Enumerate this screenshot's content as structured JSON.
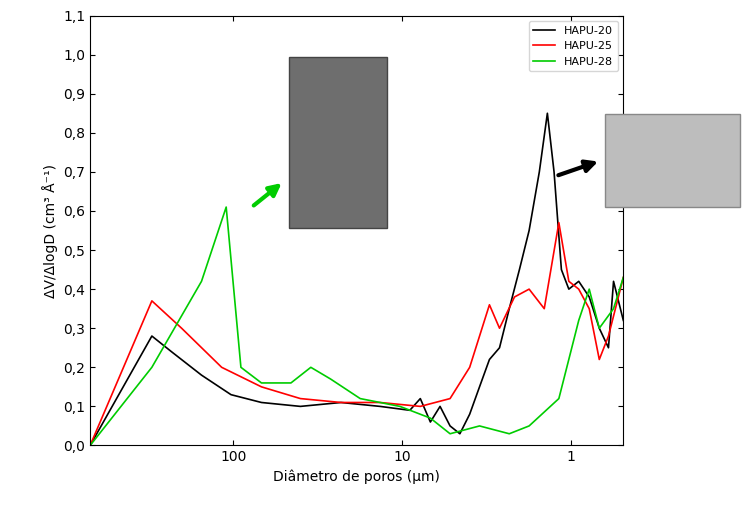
{
  "chart_data": {
    "type": "line",
    "x_label": "Diâmetro de poros (µm)",
    "y_label": "ΔV/ΔlogD (cm³ Å⁻¹)",
    "log": "x",
    "grid": false,
    "legend": "upper right",
    "xlim": [
      703,
      0.49
    ],
    "xticks": [
      100,
      10,
      1
    ],
    "ylim": [
      0.0,
      1.1
    ],
    "yticks": [
      {
        "value": 0.0,
        "label": "0,0"
      },
      {
        "value": 0.1,
        "label": "0,1"
      },
      {
        "value": 0.2,
        "label": "0,2"
      },
      {
        "value": 0.3,
        "label": "0,3"
      },
      {
        "value": 0.4,
        "label": "0,4"
      },
      {
        "value": 0.5,
        "label": "0,5"
      },
      {
        "value": 0.6,
        "label": "0,6"
      },
      {
        "value": 0.7,
        "label": "0,7"
      },
      {
        "value": 0.8,
        "label": "0,8"
      },
      {
        "value": 0.9,
        "label": "0,9"
      },
      {
        "value": 1.0,
        "label": "1,0"
      },
      {
        "value": 1.1,
        "label": "1,1"
      }
    ],
    "series": [
      {
        "name": "HAPU-20",
        "color": "#000000",
        "x": [
          703,
          303,
          232,
          154,
          103,
          68,
          40,
          23,
          13.5,
          9.0,
          7.8,
          6.8,
          5.96,
          5.2,
          4.55,
          3.98,
          3.48,
          3.04,
          2.65,
          2.32,
          2.02,
          1.77,
          1.54,
          1.38,
          1.26,
          1.14,
          1.03,
          0.9,
          0.78,
          0.68,
          0.6,
          0.56,
          0.49
        ],
        "values": [
          0.0,
          0.28,
          0.24,
          0.18,
          0.13,
          0.11,
          0.1,
          0.11,
          0.1,
          0.09,
          0.12,
          0.06,
          0.1,
          0.05,
          0.03,
          0.08,
          0.15,
          0.22,
          0.25,
          0.35,
          0.45,
          0.55,
          0.7,
          0.85,
          0.7,
          0.45,
          0.4,
          0.42,
          0.38,
          0.3,
          0.25,
          0.42,
          0.32
        ]
      },
      {
        "name": "HAPU-25",
        "color": "#ff0000",
        "x": [
          703,
          303,
          202,
          117,
          68,
          40,
          23,
          13.5,
          7.8,
          5.2,
          3.98,
          3.04,
          2.65,
          2.16,
          1.77,
          1.44,
          1.18,
          1.03,
          0.9,
          0.78,
          0.68,
          0.6,
          0.49
        ],
        "values": [
          0.0,
          0.37,
          0.3,
          0.2,
          0.15,
          0.12,
          0.11,
          0.11,
          0.1,
          0.12,
          0.2,
          0.36,
          0.3,
          0.38,
          0.4,
          0.35,
          0.57,
          0.42,
          0.4,
          0.35,
          0.22,
          0.28,
          0.43
        ]
      },
      {
        "name": "HAPU-28",
        "color": "#00cc00",
        "x": [
          703,
          303,
          154,
          110,
          90,
          68,
          45.5,
          34.7,
          26.5,
          17.7,
          10.3,
          6.8,
          5.2,
          3.48,
          2.32,
          1.77,
          1.18,
          0.9,
          0.78,
          0.68,
          0.56,
          0.49
        ],
        "values": [
          0.0,
          0.2,
          0.42,
          0.61,
          0.2,
          0.16,
          0.16,
          0.2,
          0.17,
          0.12,
          0.1,
          0.07,
          0.03,
          0.05,
          0.03,
          0.05,
          0.12,
          0.32,
          0.4,
          0.3,
          0.35,
          0.43
        ]
      }
    ]
  }
}
